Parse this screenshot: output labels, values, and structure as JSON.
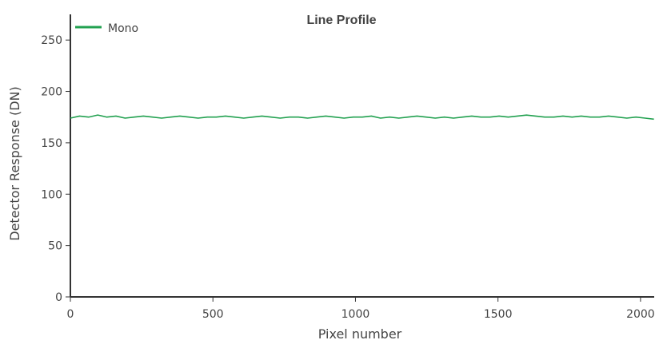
{
  "chart_data": {
    "type": "line",
    "title": "Line Profile",
    "xlabel": "Pixel number",
    "ylabel": "Detector Response (DN)",
    "xlim": [
      0,
      2048
    ],
    "ylim": [
      0,
      275
    ],
    "x_ticks": [
      0,
      500,
      1000,
      1500,
      2000
    ],
    "y_ticks": [
      0,
      50,
      100,
      150,
      200,
      250
    ],
    "x_tick_labels": [
      "0",
      "500",
      "1000",
      "1500",
      "2000"
    ],
    "y_tick_labels": [
      "0",
      "50",
      "100",
      "150",
      "200",
      "250"
    ],
    "grid": false,
    "legend_position": "top-left",
    "series": [
      {
        "name": "Mono",
        "color": "#22a150",
        "x": [
          0,
          32,
          64,
          96,
          128,
          160,
          192,
          224,
          256,
          288,
          320,
          352,
          384,
          416,
          448,
          480,
          512,
          544,
          576,
          608,
          640,
          672,
          704,
          736,
          768,
          800,
          832,
          864,
          896,
          928,
          960,
          992,
          1024,
          1056,
          1088,
          1120,
          1152,
          1184,
          1216,
          1248,
          1280,
          1312,
          1344,
          1376,
          1408,
          1440,
          1472,
          1504,
          1536,
          1568,
          1600,
          1632,
          1664,
          1696,
          1728,
          1760,
          1792,
          1824,
          1856,
          1888,
          1920,
          1952,
          1984,
          2016,
          2047
        ],
        "y": [
          174,
          176,
          175,
          177,
          175,
          176,
          174,
          175,
          176,
          175,
          174,
          175,
          176,
          175,
          174,
          175,
          175,
          176,
          175,
          174,
          175,
          176,
          175,
          174,
          175,
          175,
          174,
          175,
          176,
          175,
          174,
          175,
          175,
          176,
          174,
          175,
          174,
          175,
          176,
          175,
          174,
          175,
          174,
          175,
          176,
          175,
          175,
          176,
          175,
          176,
          177,
          176,
          175,
          175,
          176,
          175,
          176,
          175,
          175,
          176,
          175,
          174,
          175,
          174,
          173
        ]
      }
    ]
  }
}
